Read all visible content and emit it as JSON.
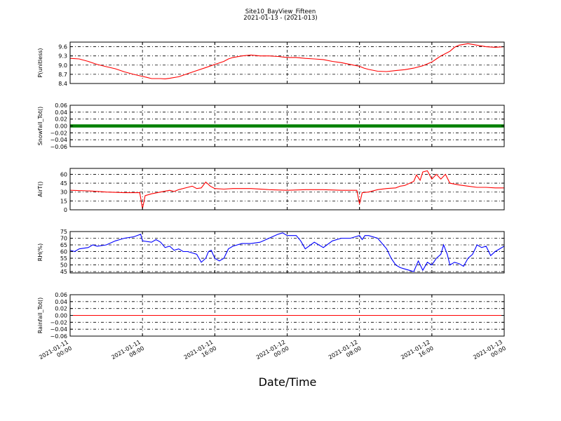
{
  "figure": {
    "title": "Site10_BayView_Fifteen",
    "subtitle": "2021-01-13 - (2021-013)",
    "xlabel": "Date/Time",
    "x_ticks": [
      {
        "x": 0,
        "l1": "2021-01-11",
        "l2": "00:00"
      },
      {
        "x": 8,
        "l1": "2021-01-11",
        "l2": "08:00"
      },
      {
        "x": 16,
        "l1": "2021-01-11",
        "l2": "16:00"
      },
      {
        "x": 24,
        "l1": "2021-01-12",
        "l2": "00:00"
      },
      {
        "x": 32,
        "l1": "2021-01-12",
        "l2": "08:00"
      },
      {
        "x": 40,
        "l1": "2021-01-12",
        "l2": "16:00"
      },
      {
        "x": 48,
        "l1": "2021-01-13",
        "l2": "00:00"
      }
    ]
  },
  "colors": {
    "red": "#ff0000",
    "green": "#008000",
    "blue": "#0000ff",
    "grid": "#000000"
  },
  "chart_data": [
    {
      "type": "line",
      "ylabel": "P(unitless)",
      "ylim": [
        8.4,
        9.75
      ],
      "yticks": [
        8.4,
        8.7,
        9.0,
        9.3,
        9.6
      ],
      "ytick_labels": [
        "8.4",
        "8.7",
        "9.0",
        "9.3",
        "9.6"
      ],
      "grid": true,
      "color": "red",
      "points": [
        [
          0,
          9.22
        ],
        [
          1,
          9.2
        ],
        [
          2,
          9.12
        ],
        [
          3,
          9.02
        ],
        [
          4,
          8.95
        ],
        [
          5,
          8.88
        ],
        [
          6,
          8.78
        ],
        [
          7,
          8.7
        ],
        [
          8,
          8.63
        ],
        [
          8.5,
          8.6
        ],
        [
          9,
          8.56
        ],
        [
          10,
          8.56
        ],
        [
          10.5,
          8.55
        ],
        [
          11,
          8.57
        ],
        [
          12,
          8.62
        ],
        [
          13,
          8.72
        ],
        [
          14,
          8.82
        ],
        [
          15,
          8.92
        ],
        [
          16,
          9.02
        ],
        [
          17,
          9.12
        ],
        [
          17.5,
          9.2
        ],
        [
          18,
          9.25
        ],
        [
          19,
          9.3
        ],
        [
          20,
          9.33
        ],
        [
          21,
          9.3
        ],
        [
          22,
          9.3
        ],
        [
          23,
          9.28
        ],
        [
          24,
          9.25
        ],
        [
          25,
          9.25
        ],
        [
          26,
          9.22
        ],
        [
          27,
          9.2
        ],
        [
          28,
          9.18
        ],
        [
          29,
          9.12
        ],
        [
          30,
          9.08
        ],
        [
          31,
          9.02
        ],
        [
          32,
          8.96
        ],
        [
          32.5,
          8.9
        ],
        [
          33,
          8.86
        ],
        [
          34,
          8.8
        ],
        [
          35,
          8.79
        ],
        [
          36,
          8.82
        ],
        [
          37,
          8.85
        ],
        [
          38,
          8.9
        ],
        [
          39,
          8.98
        ],
        [
          40,
          9.1
        ],
        [
          40.5,
          9.2
        ],
        [
          41,
          9.3
        ],
        [
          42,
          9.45
        ],
        [
          42.5,
          9.58
        ],
        [
          43,
          9.65
        ],
        [
          44,
          9.7
        ],
        [
          45,
          9.65
        ],
        [
          46,
          9.6
        ],
        [
          47,
          9.58
        ],
        [
          48,
          9.6
        ]
      ]
    },
    {
      "type": "line",
      "ylabel": "Snowfall_Tot()",
      "ylim": [
        -0.06,
        0.06
      ],
      "yticks": [
        -0.06,
        -0.04,
        -0.02,
        0.0,
        0.02,
        0.04,
        0.06
      ],
      "ytick_labels": [
        "−0.06",
        "−0.04",
        "−0.02",
        "0.00",
        "0.02",
        "0.04",
        "0.06"
      ],
      "grid": true,
      "color": "green",
      "thick": true,
      "points": [
        [
          0,
          0
        ],
        [
          48,
          0
        ]
      ]
    },
    {
      "type": "line",
      "ylabel": "AirT()",
      "ylim": [
        0,
        70
      ],
      "yticks": [
        0,
        15,
        30,
        45,
        60
      ],
      "ytick_labels": [
        "0",
        "15",
        "30",
        "45",
        "60"
      ],
      "grid": true,
      "color": "red",
      "points": [
        [
          0,
          33
        ],
        [
          2,
          32
        ],
        [
          4,
          30
        ],
        [
          6,
          29
        ],
        [
          7.7,
          29
        ],
        [
          8,
          2
        ],
        [
          8.3,
          24
        ],
        [
          9,
          27
        ],
        [
          10,
          30
        ],
        [
          11,
          33
        ],
        [
          11.5,
          31
        ],
        [
          12,
          34
        ],
        [
          13,
          38
        ],
        [
          13.5,
          40
        ],
        [
          14,
          36
        ],
        [
          14.5,
          37
        ],
        [
          15,
          47
        ],
        [
          15.5,
          40
        ],
        [
          16,
          36
        ],
        [
          17,
          35
        ],
        [
          18,
          36
        ],
        [
          20,
          36
        ],
        [
          22,
          34
        ],
        [
          24,
          33
        ],
        [
          26,
          34
        ],
        [
          28,
          34
        ],
        [
          30,
          33
        ],
        [
          31.7,
          33
        ],
        [
          32,
          10
        ],
        [
          32.3,
          29
        ],
        [
          33,
          30
        ],
        [
          34,
          34
        ],
        [
          35,
          36
        ],
        [
          36,
          37
        ],
        [
          36.5,
          40
        ],
        [
          37,
          41
        ],
        [
          38,
          48
        ],
        [
          38.3,
          59
        ],
        [
          38.7,
          50
        ],
        [
          39,
          64
        ],
        [
          39.5,
          66
        ],
        [
          40,
          52
        ],
        [
          40.5,
          60
        ],
        [
          41,
          52
        ],
        [
          41.5,
          60
        ],
        [
          42,
          45
        ],
        [
          43,
          42
        ],
        [
          44,
          40
        ],
        [
          45,
          38
        ],
        [
          46,
          38
        ],
        [
          47,
          37
        ],
        [
          48,
          37
        ]
      ]
    },
    {
      "type": "line",
      "ylabel": "RH(%)",
      "ylim": [
        44,
        75
      ],
      "yticks": [
        45,
        50,
        55,
        60,
        65,
        70,
        75
      ],
      "ytick_labels": [
        "45",
        "50",
        "55",
        "60",
        "65",
        "70",
        "75"
      ],
      "grid": true,
      "color": "blue",
      "points": [
        [
          0,
          61
        ],
        [
          0.5,
          60
        ],
        [
          1,
          62
        ],
        [
          2,
          63
        ],
        [
          2.5,
          65
        ],
        [
          3,
          64
        ],
        [
          4,
          65
        ],
        [
          5,
          68
        ],
        [
          6,
          70
        ],
        [
          7,
          71
        ],
        [
          7.8,
          73
        ],
        [
          8,
          68
        ],
        [
          9,
          67
        ],
        [
          9.5,
          69
        ],
        [
          10,
          67
        ],
        [
          10.5,
          63
        ],
        [
          11,
          64
        ],
        [
          11.5,
          61
        ],
        [
          12,
          62
        ],
        [
          12.5,
          60
        ],
        [
          13,
          60
        ],
        [
          14,
          58
        ],
        [
          14.5,
          52
        ],
        [
          15,
          55
        ],
        [
          15.3,
          60
        ],
        [
          15.6,
          61
        ],
        [
          16,
          55
        ],
        [
          16.5,
          53
        ],
        [
          17,
          55
        ],
        [
          17.5,
          62
        ],
        [
          18,
          64
        ],
        [
          19,
          66
        ],
        [
          20,
          66
        ],
        [
          21,
          67
        ],
        [
          22,
          70
        ],
        [
          23,
          73
        ],
        [
          23.5,
          74
        ],
        [
          24,
          72
        ],
        [
          25,
          72
        ],
        [
          25.5,
          68
        ],
        [
          26,
          62
        ],
        [
          27,
          67
        ],
        [
          28,
          63
        ],
        [
          29,
          68
        ],
        [
          30,
          70
        ],
        [
          31,
          70
        ],
        [
          31.5,
          71
        ],
        [
          32,
          72
        ],
        [
          32.3,
          69
        ],
        [
          32.6,
          72
        ],
        [
          33,
          72
        ],
        [
          34,
          70
        ],
        [
          35,
          62
        ],
        [
          35.5,
          55
        ],
        [
          36,
          50
        ],
        [
          36.5,
          48
        ],
        [
          37,
          47
        ],
        [
          37.5,
          46
        ],
        [
          38,
          45
        ],
        [
          38.5,
          53
        ],
        [
          39,
          46
        ],
        [
          39.5,
          52
        ],
        [
          40,
          50
        ],
        [
          40.5,
          55
        ],
        [
          41,
          58
        ],
        [
          41.3,
          65
        ],
        [
          41.7,
          58
        ],
        [
          42,
          50
        ],
        [
          42.5,
          52
        ],
        [
          43,
          51
        ],
        [
          43.5,
          49
        ],
        [
          44,
          55
        ],
        [
          44.5,
          58
        ],
        [
          45,
          65
        ],
        [
          45.5,
          63
        ],
        [
          46,
          64
        ],
        [
          46.5,
          57
        ],
        [
          47,
          60
        ],
        [
          48,
          64
        ]
      ]
    },
    {
      "type": "line",
      "ylabel": "Rainfall_Tot()",
      "ylim": [
        -0.06,
        0.06
      ],
      "yticks": [
        -0.06,
        -0.04,
        -0.02,
        0.0,
        0.02,
        0.04,
        0.06
      ],
      "ytick_labels": [
        "−0.06",
        "−0.04",
        "−0.02",
        "0.00",
        "0.02",
        "0.04",
        "0.06"
      ],
      "grid": true,
      "color": "red",
      "points": [
        [
          0,
          0
        ],
        [
          48,
          0
        ]
      ]
    }
  ]
}
